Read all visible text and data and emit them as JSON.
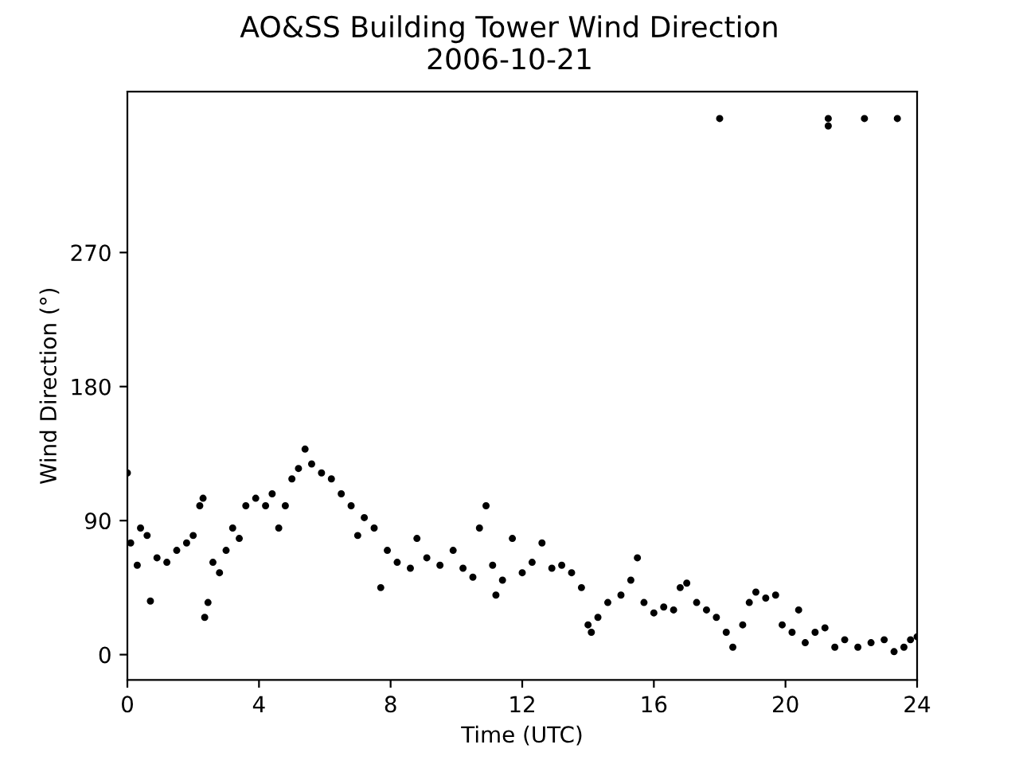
{
  "chart_data": {
    "type": "scatter",
    "title": "AO&SS Building Tower Wind Direction\n2006-10-21",
    "xlabel": "Time (UTC)",
    "ylabel": "Wind Direction (°)",
    "series": [
      {
        "color": "#000000",
        "x": [
          0.0,
          0.1,
          0.3,
          0.4,
          0.6,
          0.7,
          0.9,
          1.2,
          1.5,
          1.8,
          2.0,
          2.2,
          2.3,
          2.35,
          2.45,
          2.6,
          2.8,
          3.0,
          3.2,
          3.4,
          3.6,
          3.9,
          4.2,
          4.4,
          4.6,
          4.8,
          5.0,
          5.2,
          5.4,
          5.6,
          5.9,
          6.2,
          6.5,
          6.8,
          7.0,
          7.2,
          7.5,
          7.7,
          7.9,
          8.2,
          8.6,
          8.8,
          9.1,
          9.5,
          9.9,
          10.2,
          10.5,
          10.7,
          10.9,
          11.1,
          11.2,
          11.4,
          11.7,
          12.0,
          12.3,
          12.6,
          12.9,
          13.2,
          13.5,
          13.8,
          14.0,
          14.1,
          14.3,
          14.6,
          15.0,
          15.3,
          15.5,
          15.7,
          16.0,
          16.3,
          16.6,
          16.8,
          17.0,
          17.3,
          17.6,
          17.9,
          18.0,
          18.2,
          18.4,
          18.7,
          18.9,
          19.1,
          19.4,
          19.7,
          19.9,
          20.2,
          20.4,
          20.6,
          20.9,
          21.2,
          21.3,
          21.3,
          21.5,
          21.8,
          22.2,
          22.4,
          22.6,
          23.0,
          23.3,
          23.4,
          23.6,
          23.8,
          24.0
        ],
        "values": [
          122,
          75,
          60,
          85,
          80,
          36,
          65,
          62,
          70,
          75,
          80,
          100,
          105,
          25,
          35,
          62,
          55,
          70,
          85,
          78,
          100,
          105,
          100,
          108,
          85,
          100,
          118,
          125,
          138,
          128,
          122,
          118,
          108,
          100,
          80,
          92,
          85,
          45,
          70,
          62,
          58,
          78,
          65,
          60,
          70,
          58,
          52,
          85,
          100,
          60,
          40,
          50,
          78,
          55,
          62,
          75,
          58,
          60,
          55,
          45,
          20,
          15,
          25,
          35,
          40,
          50,
          65,
          35,
          28,
          32,
          30,
          45,
          48,
          35,
          30,
          25,
          360,
          15,
          5,
          20,
          35,
          42,
          38,
          40,
          20,
          15,
          30,
          8,
          15,
          18,
          360,
          355,
          5,
          10,
          5,
          360,
          8,
          10,
          2,
          360,
          5,
          10,
          12
        ]
      }
    ],
    "marker": "circle",
    "xlim": [
      0,
      24
    ],
    "ylim": [
      -17,
      378
    ],
    "xticks": [
      0,
      4,
      8,
      12,
      16,
      20,
      24
    ],
    "yticks": [
      0,
      90,
      180,
      270
    ],
    "grid": false,
    "legend": false
  }
}
